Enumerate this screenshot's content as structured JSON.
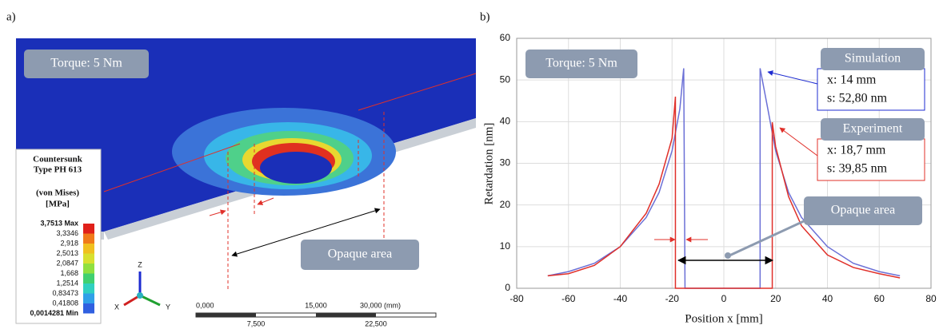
{
  "panel_a": {
    "label": "a)",
    "torque": "Torque: 5 Nm",
    "legend_title": [
      "Countersunk",
      "Type PH 613"
    ],
    "legend_subtitle": [
      "(von Mises)",
      "[MPa]"
    ],
    "colorbar_labels": [
      "3,7513 Max",
      "3,3346",
      "2,918",
      "2,5013",
      "2,0847",
      "1,668",
      "1,2514",
      "0,83473",
      "0,41808",
      "0,0014281 Min"
    ],
    "axes": [
      "Z",
      "X",
      "Y"
    ],
    "scale_top": [
      "0,000",
      "15,000",
      "30,000 (mm)"
    ],
    "scale_bottom": [
      "7,500",
      "22,500"
    ],
    "opaque": "Opaque area"
  },
  "chart_data": {
    "type": "line",
    "label": "b)",
    "xlabel": "Position x [mm]",
    "ylabel": "Retardation [nm]",
    "xlim": [
      -80,
      80
    ],
    "xticks": [
      -80,
      -60,
      -40,
      -20,
      0,
      20,
      40,
      60,
      80
    ],
    "ylim": [
      0,
      60
    ],
    "yticks": [
      0,
      10,
      20,
      30,
      40,
      50,
      60
    ],
    "grid": true,
    "series": [
      {
        "name": "Simulation",
        "color": "#6b70d6",
        "x": [
          -68,
          -60,
          -50,
          -40,
          -30,
          -25,
          -20,
          -17,
          -15.5,
          -15,
          14,
          14,
          17,
          20,
          25,
          30,
          40,
          50,
          60,
          68
        ],
        "values": [
          3,
          4,
          6,
          10,
          17,
          23,
          33,
          43,
          52.8,
          0,
          0,
          52.8,
          43,
          33,
          23,
          17,
          10,
          6,
          4,
          3
        ]
      },
      {
        "name": "Experiment",
        "color": "#e0302a",
        "x": [
          -68,
          -60,
          -50,
          -40,
          -30,
          -25,
          -20,
          -18.7,
          -18.7,
          18.7,
          18.7,
          20,
          25,
          30,
          40,
          50,
          60,
          68
        ],
        "values": [
          3,
          3.5,
          5.5,
          10,
          18,
          25,
          36,
          46,
          0,
          0,
          39.85,
          34,
          22,
          15,
          8,
          5,
          3.5,
          2.5
        ]
      }
    ],
    "annotations": {
      "torque": "Torque: 5 Nm",
      "sim_x": "x: 14 mm",
      "sim_s": "s: 52,80 nm",
      "exp_x": "x: 18,7 mm",
      "exp_s": "s: 39,85 nm",
      "opaque": "Opaque area"
    }
  }
}
